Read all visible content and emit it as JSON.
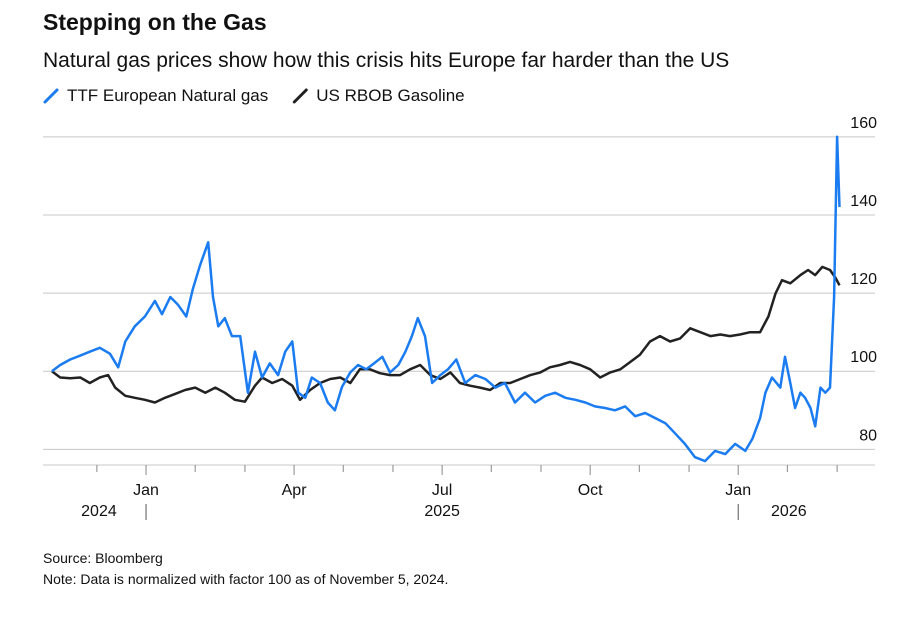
{
  "chart_data": {
    "type": "line",
    "title": "Stepping on the Gas",
    "subtitle": "Natural gas prices show how this crisis hits Europe far harder than the US",
    "source": "Source: Bloomberg",
    "note": "Note: Data is normalized with factor 100 as of November 5, 2024.",
    "xlim": [
      2024.826,
      2026.231
    ],
    "ylim": [
      76,
      162
    ],
    "yticks": [
      80,
      100,
      120,
      140,
      160
    ],
    "xticks": [
      {
        "value": 2025.0,
        "label": "Jan"
      },
      {
        "value": 2025.25,
        "label": "Apr"
      },
      {
        "value": 2025.5,
        "label": "Jul"
      },
      {
        "value": 2025.75,
        "label": "Oct"
      },
      {
        "value": 2026.0,
        "label": "Jan"
      }
    ],
    "xminorticks": [
      2024.917,
      2025.083,
      2025.167,
      2025.333,
      2025.417,
      2025.583,
      2025.667,
      2025.833,
      2025.917,
      2026.083,
      2026.167
    ],
    "xyears": [
      2024,
      2025,
      2026
    ],
    "grid": true,
    "series": [
      {
        "name": "TTF European Natural gas",
        "color": "#1a7cf0",
        "x": [
          2024.841,
          2024.855,
          2024.872,
          2024.889,
          2024.905,
          2024.922,
          2024.939,
          2024.953,
          2024.965,
          2024.981,
          2024.998,
          2025.015,
          2025.027,
          2025.041,
          2025.054,
          2025.068,
          2025.079,
          2025.091,
          2025.105,
          2025.113,
          2025.122,
          2025.133,
          2025.145,
          2025.159,
          2025.172,
          2025.184,
          2025.196,
          2025.209,
          2025.223,
          2025.235,
          2025.247,
          2025.257,
          2025.269,
          2025.28,
          2025.294,
          2025.307,
          2025.319,
          2025.331,
          2025.345,
          2025.358,
          2025.372,
          2025.385,
          2025.399,
          2025.412,
          2025.426,
          2025.438,
          2025.449,
          2025.459,
          2025.471,
          2025.483,
          2025.497,
          2025.51,
          2025.524,
          2025.539,
          2025.556,
          2025.573,
          2025.59,
          2025.606,
          2025.623,
          2025.64,
          2025.657,
          2025.674,
          2025.691,
          2025.708,
          2025.725,
          2025.742,
          2025.758,
          2025.775,
          2025.792,
          2025.809,
          2025.826,
          2025.843,
          2025.86,
          2025.877,
          2025.894,
          2025.91,
          2025.927,
          2025.944,
          2025.961,
          2025.978,
          2025.995,
          2026.012,
          2026.024,
          2026.037,
          2026.046,
          2026.057,
          2026.071,
          2026.079,
          2026.088,
          2026.096,
          2026.105,
          2026.113,
          2026.122,
          2026.13,
          2026.139,
          2026.147,
          2026.155,
          2026.162,
          2026.167,
          2026.171
        ],
        "values": [
          100,
          101.6,
          103,
          104,
          105,
          106,
          104.5,
          101,
          107.6,
          111.5,
          114,
          118,
          114.6,
          119,
          117,
          114,
          121,
          127,
          133,
          119,
          111.5,
          113.6,
          109,
          109,
          94.5,
          105,
          98.4,
          102,
          99,
          105,
          107.6,
          94.5,
          93.2,
          98.4,
          97,
          92,
          90,
          96,
          99.7,
          101.6,
          100.5,
          102,
          103.7,
          99.7,
          101.6,
          105,
          109,
          113.6,
          109,
          97,
          99,
          100.5,
          103,
          97,
          99,
          98,
          95.8,
          97,
          92,
          94.5,
          92,
          93.7,
          94.5,
          93.2,
          92.7,
          92,
          91,
          90.6,
          90,
          91,
          88.5,
          89.3,
          88,
          86.7,
          84,
          81.4,
          78,
          77,
          79.6,
          78.8,
          81.4,
          79.6,
          82.7,
          88,
          94.5,
          98.4,
          95.8,
          103.7,
          97,
          90.6,
          94.5,
          93.2,
          90.6,
          85.9,
          95.8,
          94.5,
          95.8,
          119,
          160,
          142
        ]
      },
      {
        "name": "US RBOB Gasoline",
        "color": "#222222",
        "x": [
          2024.841,
          2024.855,
          2024.872,
          2024.889,
          2024.905,
          2024.922,
          2024.936,
          2024.948,
          2024.965,
          2024.981,
          2024.998,
          2025.015,
          2025.032,
          2025.049,
          2025.066,
          2025.083,
          2025.1,
          2025.117,
          2025.133,
          2025.15,
          2025.167,
          2025.184,
          2025.196,
          2025.213,
          2025.23,
          2025.247,
          2025.26,
          2025.277,
          2025.294,
          2025.311,
          2025.328,
          2025.345,
          2025.361,
          2025.378,
          2025.395,
          2025.412,
          2025.429,
          2025.446,
          2025.463,
          2025.48,
          2025.497,
          2025.514,
          2025.53,
          2025.547,
          2025.564,
          2025.581,
          2025.598,
          2025.615,
          2025.632,
          2025.649,
          2025.666,
          2025.682,
          2025.699,
          2025.716,
          2025.733,
          2025.75,
          2025.767,
          2025.784,
          2025.801,
          2025.818,
          2025.834,
          2025.851,
          2025.868,
          2025.885,
          2025.902,
          2025.919,
          2025.936,
          2025.953,
          2025.97,
          2025.986,
          2026.003,
          2026.02,
          2026.037,
          2026.051,
          2026.063,
          2026.074,
          2026.088,
          2026.105,
          2026.118,
          2026.13,
          2026.142,
          2026.155,
          2026.164,
          2026.171
        ],
        "values": [
          100,
          98.4,
          98.2,
          98.4,
          97,
          98.4,
          99,
          95.8,
          93.7,
          93.2,
          92.7,
          92,
          93.2,
          94.2,
          95.2,
          95.8,
          94.5,
          95.8,
          94.5,
          92.7,
          92.2,
          96.3,
          98.4,
          97,
          98,
          96.3,
          92.7,
          95.2,
          97,
          98,
          98.4,
          97,
          100.5,
          100.5,
          99.5,
          99,
          99,
          100.5,
          101.6,
          99,
          98,
          99.7,
          97,
          96.3,
          95.8,
          95.2,
          97,
          97,
          98,
          99,
          99.7,
          101,
          101.6,
          102.4,
          101.6,
          100.5,
          98.4,
          99.7,
          100.5,
          102.4,
          104.2,
          107.6,
          109,
          107.6,
          108.4,
          111,
          110,
          109,
          109.4,
          109,
          109.4,
          110,
          110,
          114,
          119.9,
          123.3,
          122.5,
          124.6,
          125.9,
          124.6,
          126.7,
          125.9,
          124,
          122
        ]
      }
    ]
  }
}
